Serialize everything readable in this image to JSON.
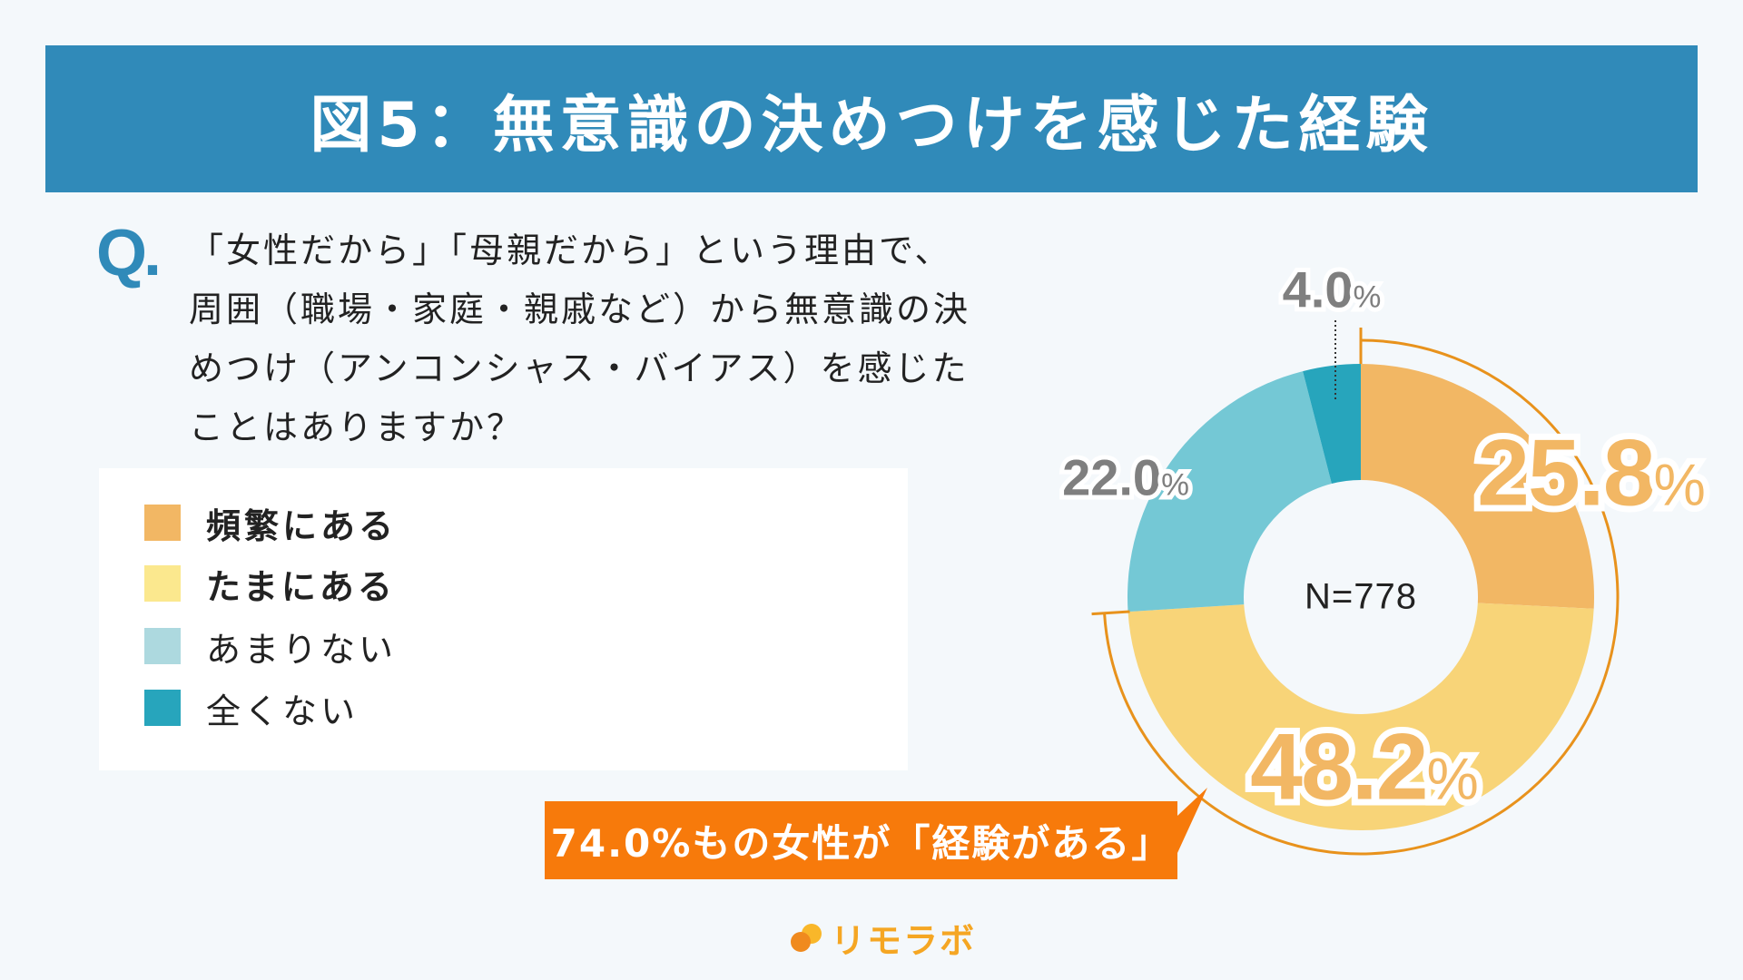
{
  "header": {
    "title": "図5：無意識の決めつけを感じた経験"
  },
  "question": {
    "mark": "Q.",
    "lines": [
      "「女性だから」「母親だから」という理由で、",
      "周囲（職場・家庭・親戚など）から無意識の決",
      "めつけ（アンコンシャス・バイアス）を感じた",
      "ことはありますか？"
    ]
  },
  "legend": {
    "items": [
      {
        "label": "頻繁にある",
        "color": "#F2B764",
        "bold": true
      },
      {
        "label": "たまにある",
        "color": "#FBE88E",
        "bold": true
      },
      {
        "label": "あまりない",
        "color": "#ADD9DF",
        "bold": false
      },
      {
        "label": "全くない",
        "color": "#27A5BC",
        "bold": false
      }
    ]
  },
  "chart": {
    "center_label": "N=778",
    "labels": {
      "frequent": {
        "value": "25.8",
        "unit": "%"
      },
      "sometimes": {
        "value": "48.2",
        "unit": "%"
      },
      "rarely": {
        "value": "22.0",
        "unit": "%"
      },
      "never": {
        "value": "4.0",
        "unit": "%"
      }
    }
  },
  "callout": {
    "text": "74.0%もの女性が「経験がある」"
  },
  "logo": {
    "text": "リモラボ"
  },
  "colors": {
    "header": "#308AB9",
    "frequent": "#F2B764",
    "sometimes": "#F8D478",
    "rarely": "#74C8D5",
    "never": "#27A5BC",
    "callout": "#F77A0B",
    "bracket": "#E8921C"
  },
  "chart_data": {
    "type": "pie",
    "title": "図5：無意識の決めつけを感じた経験",
    "subtitle": "「女性だから」「母親だから」という理由で、周囲（職場・家庭・親戚など）から無意識の決めつけ（アンコンシャス・バイアス）を感じたことはありますか？",
    "categories": [
      "頻繁にある",
      "たまにある",
      "あまりない",
      "全くない"
    ],
    "values": [
      25.8,
      48.2,
      22.0,
      4.0
    ],
    "unit": "%",
    "donut": true,
    "center_text": "N=778",
    "sample_size": 778,
    "legend_position": "left",
    "annotations": [
      "74.0%もの女性が「経験がある」"
    ],
    "start_angle": "12 o'clock, clockwise"
  }
}
